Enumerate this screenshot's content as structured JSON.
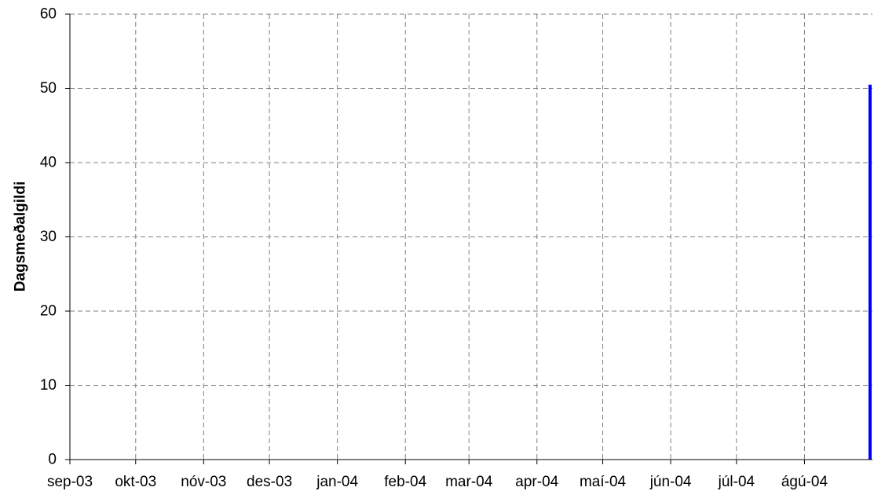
{
  "chart_data": {
    "type": "bar",
    "title": "",
    "xlabel": "",
    "ylabel": "Dagsmeðalgildi",
    "x_tick_labels": [
      "sep-03",
      "okt-03",
      "nóv-03",
      "des-03",
      "jan-04",
      "feb-04",
      "mar-04",
      "apr-04",
      "maí-04",
      "jún-04",
      "júl-04",
      "ágú-04"
    ],
    "xlim": [
      "2003-09-01",
      "2004-09-01"
    ],
    "y_ticks": [
      0,
      10,
      20,
      30,
      40,
      50,
      60
    ],
    "ylim": [
      0,
      60
    ],
    "grid": true,
    "legend": "none",
    "series": [
      {
        "points": [
          {
            "x": "2004-08-31",
            "y": 50.5
          }
        ],
        "color": "#0000ff"
      }
    ],
    "axis_color": "#000000",
    "grid_color": "#808080"
  }
}
